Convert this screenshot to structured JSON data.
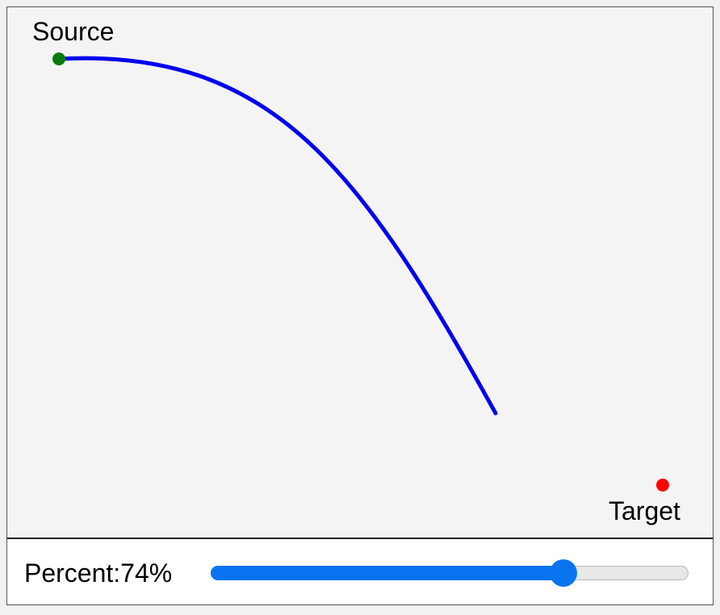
{
  "canvas": {
    "source_label": "Source",
    "target_label": "Target",
    "colors": {
      "source_dot": "#0a7a0a",
      "target_dot": "#ff0000",
      "path": "#0000ee",
      "background": "#f4f4f4"
    }
  },
  "controls": {
    "percent_label": "Percent:",
    "percent_text": "74%",
    "percent_value": 74,
    "slider_color": "#0a74f0"
  }
}
